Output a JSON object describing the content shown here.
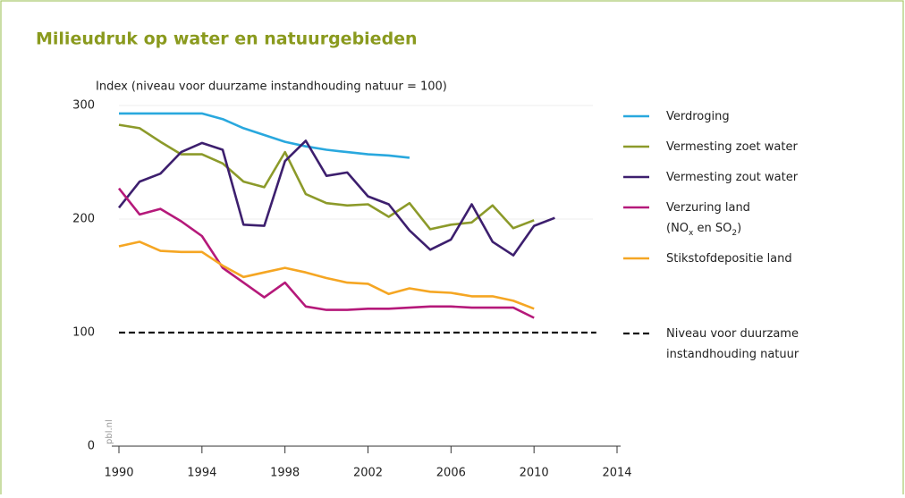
{
  "chart_data": {
    "type": "line",
    "title": "Milieudruk op water en natuurgebieden",
    "y_label": "Index (niveau voor duurzame instandhouding natuur = 100)",
    "source": "pbl.nl",
    "xlim": [
      1990,
      2014
    ],
    "xticks": [
      1990,
      1994,
      1998,
      2002,
      2006,
      2010,
      2014
    ],
    "ylim": [
      0,
      300
    ],
    "yticks": [
      0,
      100,
      200,
      300
    ],
    "grid": true,
    "series": [
      {
        "name": "Verdroging",
        "color": "#29a8de",
        "x": [
          1990,
          1991,
          1992,
          1993,
          1994,
          1995,
          1996,
          1997,
          1998,
          1999,
          2000,
          2001,
          2002,
          2003,
          2004
        ],
        "values": [
          293,
          293,
          293,
          293,
          293,
          288,
          280,
          274,
          268,
          264,
          261,
          259,
          257,
          256,
          254
        ]
      },
      {
        "name": "Vermesting zoet water",
        "color": "#8c9a2a",
        "x": [
          1990,
          1991,
          1992,
          1993,
          1994,
          1995,
          1996,
          1997,
          1998,
          1999,
          2000,
          2001,
          2002,
          2003,
          2004,
          2005,
          2006,
          2007,
          2008,
          2009,
          2010
        ],
        "values": [
          283,
          280,
          268,
          257,
          257,
          249,
          233,
          228,
          259,
          222,
          214,
          212,
          213,
          202,
          214,
          191,
          195,
          197,
          212,
          192,
          199
        ]
      },
      {
        "name": "Vermesting zout water",
        "color": "#3d1f6e",
        "x": [
          1990,
          1991,
          1992,
          1993,
          1994,
          1995,
          1996,
          1997,
          1998,
          1999,
          2000,
          2001,
          2002,
          2003,
          2004,
          2005,
          2006,
          2007,
          2008,
          2009,
          2010,
          2011
        ],
        "values": [
          210,
          233,
          240,
          259,
          267,
          261,
          195,
          194,
          251,
          269,
          238,
          241,
          220,
          213,
          190,
          173,
          182,
          213,
          180,
          168,
          194,
          201
        ]
      },
      {
        "name": "Verzuring land (NOx en SO2)",
        "color": "#b5197a",
        "x": [
          1990,
          1991,
          1992,
          1993,
          1994,
          1995,
          1996,
          1997,
          1998,
          1999,
          2000,
          2001,
          2002,
          2003,
          2004,
          2005,
          2006,
          2007,
          2008,
          2009,
          2010
        ],
        "values": [
          227,
          204,
          209,
          198,
          185,
          157,
          144,
          131,
          144,
          123,
          120,
          120,
          121,
          121,
          122,
          123,
          123,
          122,
          122,
          122,
          113
        ]
      },
      {
        "name": "Stikstofdepositie land",
        "color": "#f5a623",
        "x": [
          1990,
          1991,
          1992,
          1993,
          1994,
          1995,
          1996,
          1997,
          1998,
          1999,
          2000,
          2001,
          2002,
          2003,
          2004,
          2005,
          2006,
          2007,
          2008,
          2009,
          2010
        ],
        "values": [
          176,
          180,
          172,
          171,
          171,
          159,
          149,
          153,
          157,
          153,
          148,
          144,
          143,
          134,
          139,
          136,
          135,
          132,
          132,
          128,
          121
        ]
      },
      {
        "name": "Niveau voor duurzame instandhouding natuur",
        "color": "#111111",
        "dashed": true,
        "x": [
          1990,
          2013
        ],
        "values": [
          100,
          100
        ]
      }
    ]
  }
}
